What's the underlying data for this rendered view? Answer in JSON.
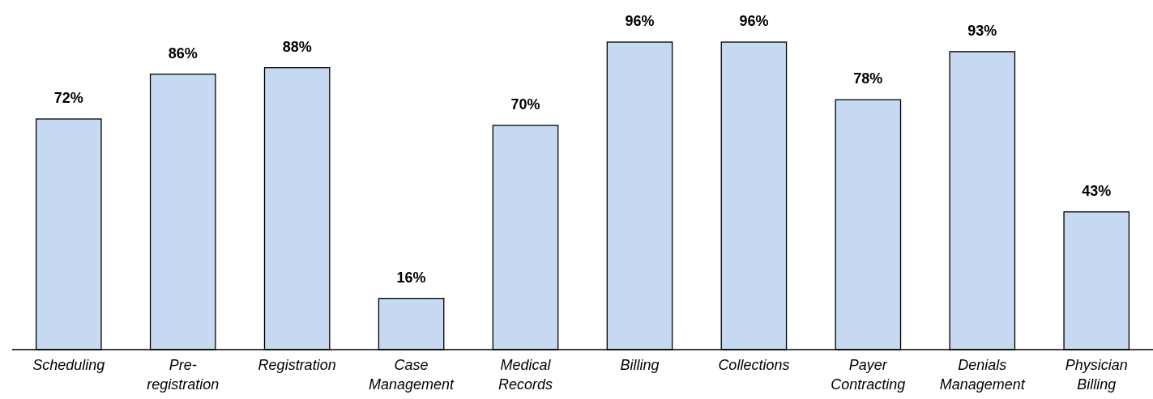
{
  "chart_data": {
    "type": "bar",
    "categories": [
      "Scheduling",
      "Pre-registration",
      "Registration",
      "Case Management",
      "Medical Records",
      "Billing",
      "Collections",
      "Payer Contracting",
      "Denials Management",
      "Physician Billing"
    ],
    "values": [
      72,
      86,
      88,
      16,
      70,
      96,
      96,
      78,
      93,
      43
    ],
    "color": "#c6d9f0",
    "value_labels": [
      "72%",
      "86%",
      "88%",
      "16%",
      "70%",
      "96%",
      "96%",
      "78%",
      "93%",
      "43%"
    ]
  }
}
